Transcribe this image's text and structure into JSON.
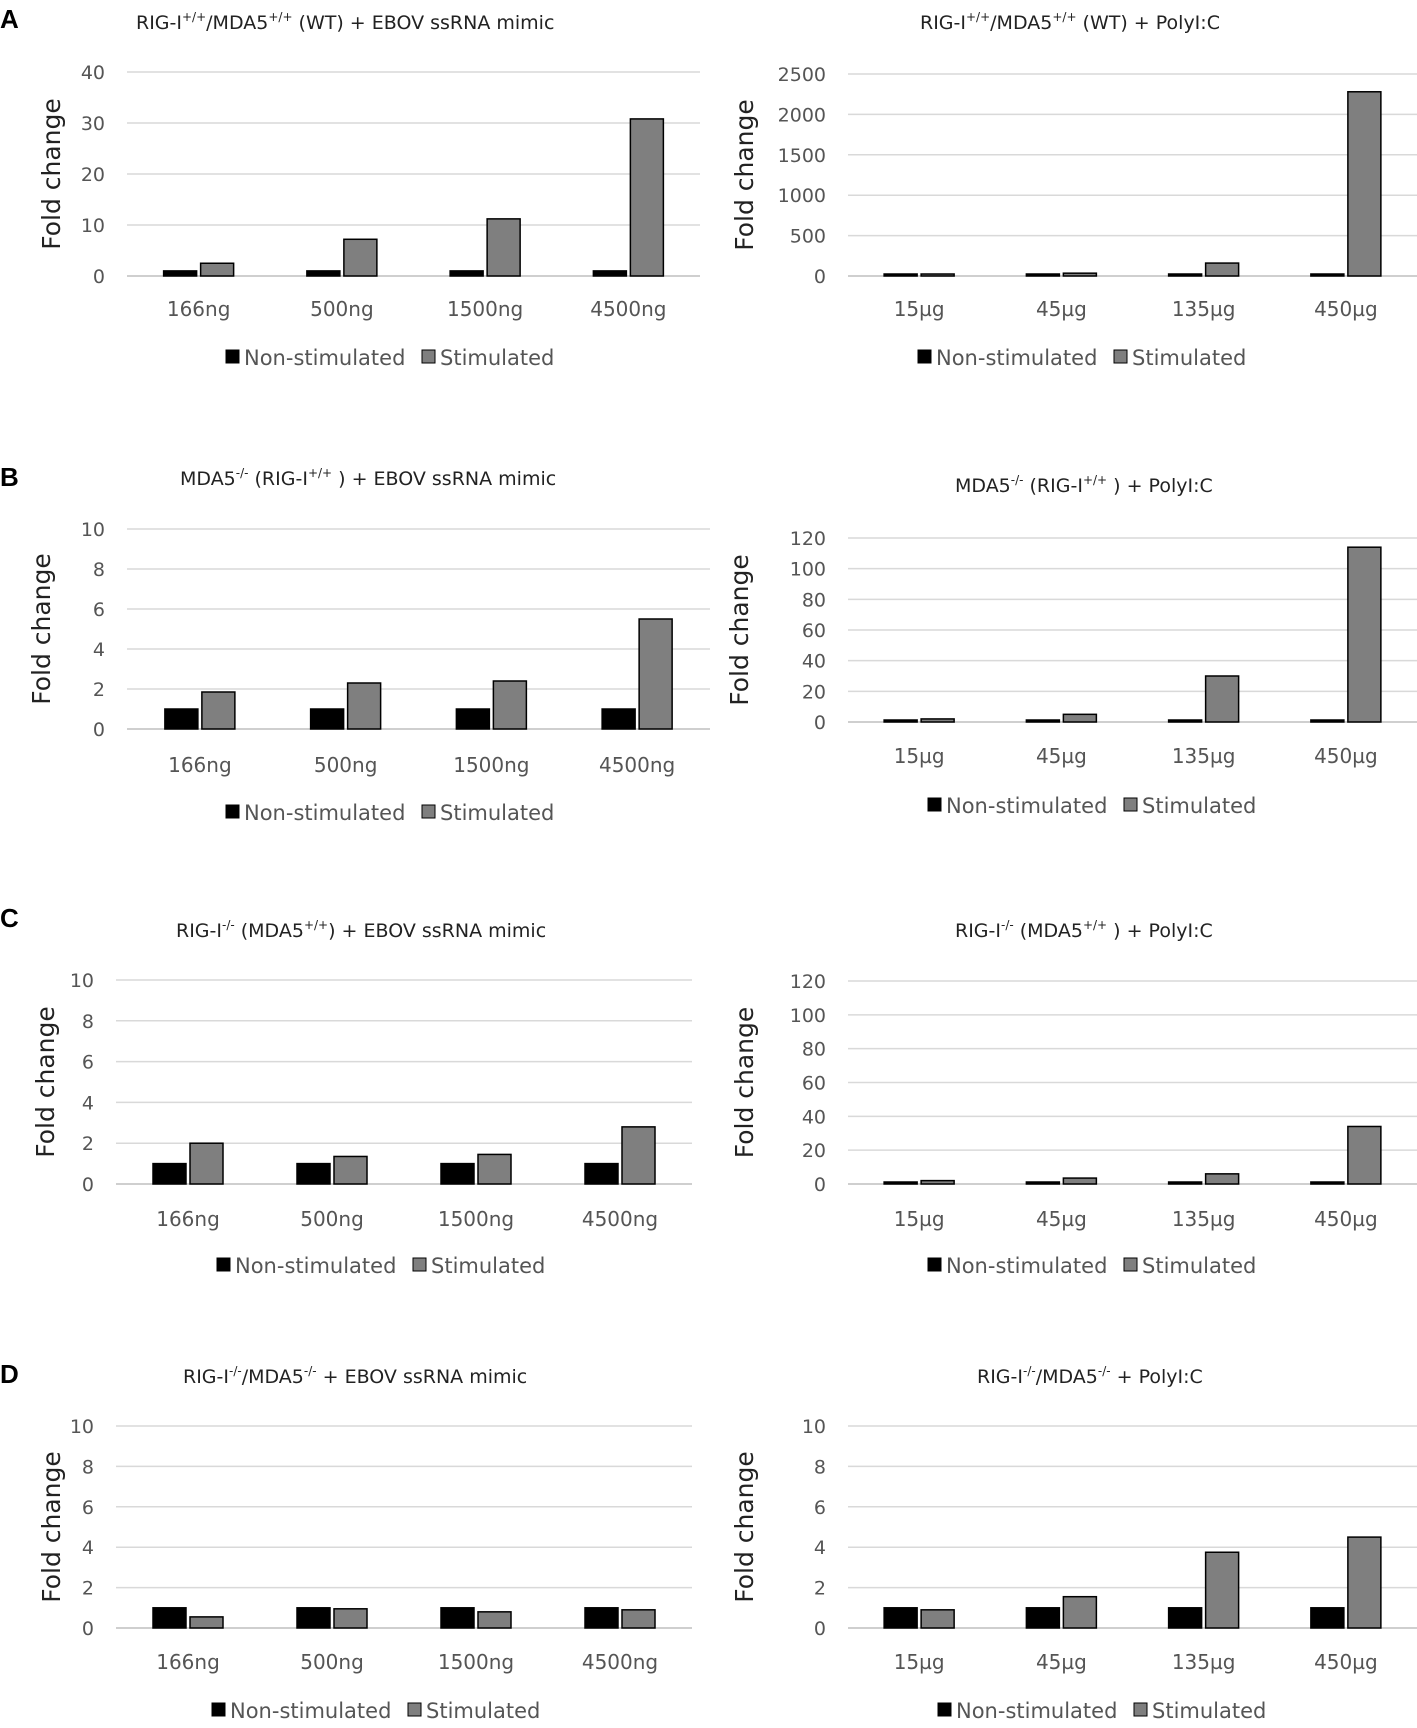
{
  "figure": {
    "panel_letters": [
      "A",
      "B",
      "C",
      "D"
    ],
    "colors": {
      "non_stimulated": "#000000",
      "stimulated": "#7f7f7f",
      "grid": "#d9d9d9"
    }
  },
  "chart_data": [
    {
      "id": "A-left",
      "panel": "A",
      "type": "bar",
      "title": "RIG-I+/+/MDA5+/+ (WT) + EBOV ssRNA mimic",
      "title_parts": [
        {
          "t": "RIG-I"
        },
        {
          "t": "+/+",
          "sup": true
        },
        {
          "t": "/MDA5"
        },
        {
          "t": "+/+",
          "sup": true
        },
        {
          "t": " (WT) + EBOV ssRNA mimic"
        }
      ],
      "ylabel": "Fold change",
      "ylim": [
        0,
        40
      ],
      "yticks": [
        0,
        10,
        20,
        30,
        40
      ],
      "categories": [
        "166ng",
        "500ng",
        "1500ng",
        "4500ng"
      ],
      "series": [
        {
          "name": "Non-stimulated",
          "values": [
            1,
            1,
            1,
            1
          ]
        },
        {
          "name": "Stimulated",
          "values": [
            2.5,
            7.2,
            11.2,
            30.8
          ]
        }
      ],
      "legend": [
        "Non-stimulated",
        "Stimulated"
      ]
    },
    {
      "id": "A-right",
      "panel": "A",
      "type": "bar",
      "title": "RIG-I+/+/MDA5+/+ (WT) + PolyI:C",
      "title_parts": [
        {
          "t": "RIG-I"
        },
        {
          "t": "+/+",
          "sup": true
        },
        {
          "t": "/MDA5"
        },
        {
          "t": "+/+",
          "sup": true
        },
        {
          "t": " (WT) + PolyI:C"
        }
      ],
      "ylabel": "Fold change",
      "ylim": [
        0,
        2500
      ],
      "yticks": [
        0,
        500,
        1000,
        1500,
        2000,
        2500
      ],
      "categories": [
        "15µg",
        "45µg",
        "135µg",
        "450µg"
      ],
      "series": [
        {
          "name": "Non-stimulated",
          "values": [
            1,
            1,
            1,
            1
          ]
        },
        {
          "name": "Stimulated",
          "values": [
            8,
            35,
            160,
            2280
          ]
        }
      ],
      "legend": [
        "Non-stimulated",
        "Stimulated"
      ]
    },
    {
      "id": "B-left",
      "panel": "B",
      "type": "bar",
      "title": "MDA5-/- (RIG-I+/+) + EBOV ssRNA mimic",
      "title_parts": [
        {
          "t": "MDA5"
        },
        {
          "t": "-/-",
          "sup": true
        },
        {
          "t": " (RIG-I"
        },
        {
          "t": "+/+",
          "sup": true
        },
        {
          "t": " ) + EBOV ssRNA mimic"
        }
      ],
      "ylabel": "Fold change",
      "ylim": [
        0,
        10
      ],
      "yticks": [
        0,
        2,
        4,
        6,
        8,
        10
      ],
      "categories": [
        "166ng",
        "500ng",
        "1500ng",
        "4500ng"
      ],
      "series": [
        {
          "name": "Non-stimulated",
          "values": [
            1,
            1,
            1,
            1
          ]
        },
        {
          "name": "Stimulated",
          "values": [
            1.85,
            2.3,
            2.4,
            5.5
          ]
        }
      ],
      "legend": [
        "Non-stimulated",
        "Stimulated"
      ]
    },
    {
      "id": "B-right",
      "panel": "B",
      "type": "bar",
      "title": "MDA5-/- (RIG-I+/+) + PolyI:C",
      "title_parts": [
        {
          "t": "MDA5"
        },
        {
          "t": "-/-",
          "sup": true
        },
        {
          "t": " (RIG-I"
        },
        {
          "t": "+/+",
          "sup": true
        },
        {
          "t": " ) + PolyI:C"
        }
      ],
      "ylabel": "Fold change",
      "ylim": [
        0,
        120
      ],
      "yticks": [
        0,
        20,
        40,
        60,
        80,
        100,
        120
      ],
      "categories": [
        "15µg",
        "45µg",
        "135µg",
        "450µg"
      ],
      "series": [
        {
          "name": "Non-stimulated",
          "values": [
            1,
            1,
            1,
            1
          ]
        },
        {
          "name": "Stimulated",
          "values": [
            2,
            5,
            30,
            114
          ]
        }
      ],
      "legend": [
        "Non-stimulated",
        "Stimulated"
      ]
    },
    {
      "id": "C-left",
      "panel": "C",
      "type": "bar",
      "title": "RIG-I-/- (MDA5+/+) + EBOV ssRNA mimic",
      "title_parts": [
        {
          "t": "RIG-I"
        },
        {
          "t": "-/-",
          "sup": true
        },
        {
          "t": " (MDA5"
        },
        {
          "t": "+/+",
          "sup": true
        },
        {
          "t": ") + EBOV ssRNA mimic"
        }
      ],
      "ylabel": "Fold change",
      "ylim": [
        0,
        10
      ],
      "yticks": [
        0,
        2,
        4,
        6,
        8,
        10
      ],
      "categories": [
        "166ng",
        "500ng",
        "1500ng",
        "4500ng"
      ],
      "series": [
        {
          "name": "Non-stimulated",
          "values": [
            1,
            1,
            1,
            1
          ]
        },
        {
          "name": "Stimulated",
          "values": [
            2.0,
            1.35,
            1.45,
            2.8
          ]
        }
      ],
      "legend": [
        "Non-stimulated",
        "Stimulated"
      ]
    },
    {
      "id": "C-right",
      "panel": "C",
      "type": "bar",
      "title": "RIG-I-/- (MDA5+/+) + PolyI:C",
      "title_parts": [
        {
          "t": "RIG-I"
        },
        {
          "t": "-/-",
          "sup": true
        },
        {
          "t": " (MDA5"
        },
        {
          "t": "+/+",
          "sup": true
        },
        {
          "t": " ) + PolyI:C"
        }
      ],
      "ylabel": "Fold change",
      "ylim": [
        0,
        120
      ],
      "yticks": [
        0,
        20,
        40,
        60,
        80,
        100,
        120
      ],
      "categories": [
        "15µg",
        "45µg",
        "135µg",
        "450µg"
      ],
      "series": [
        {
          "name": "Non-stimulated",
          "values": [
            1,
            1,
            1,
            1
          ]
        },
        {
          "name": "Stimulated",
          "values": [
            2,
            3.5,
            6,
            34
          ]
        }
      ],
      "legend": [
        "Non-stimulated",
        "Stimulated"
      ]
    },
    {
      "id": "D-left",
      "panel": "D",
      "type": "bar",
      "title": "RIG-I-/-/MDA5-/- + EBOV ssRNA mimic",
      "title_parts": [
        {
          "t": "RIG-I"
        },
        {
          "t": "-/-",
          "sup": true
        },
        {
          "t": "/MDA5"
        },
        {
          "t": "-/-",
          "sup": true
        },
        {
          "t": " + EBOV ssRNA mimic"
        }
      ],
      "ylabel": "Fold change",
      "ylim": [
        0,
        10
      ],
      "yticks": [
        0,
        2,
        4,
        6,
        8,
        10
      ],
      "categories": [
        "166ng",
        "500ng",
        "1500ng",
        "4500ng"
      ],
      "series": [
        {
          "name": "Non-stimulated",
          "values": [
            1,
            1,
            1,
            1
          ]
        },
        {
          "name": "Stimulated",
          "values": [
            0.55,
            0.95,
            0.8,
            0.9
          ]
        }
      ],
      "legend": [
        "Non-stimulated",
        "Stimulated"
      ]
    },
    {
      "id": "D-right",
      "panel": "D",
      "type": "bar",
      "title": "RIG-I-/-/MDA5-/- + PolyI:C",
      "title_parts": [
        {
          "t": "RIG-I"
        },
        {
          "t": "-/-",
          "sup": true
        },
        {
          "t": "/MDA5"
        },
        {
          "t": "-/-",
          "sup": true
        },
        {
          "t": " + PolyI:C"
        }
      ],
      "ylabel": "Fold change",
      "ylim": [
        0,
        10
      ],
      "yticks": [
        0,
        2,
        4,
        6,
        8,
        10
      ],
      "categories": [
        "15µg",
        "45µg",
        "135µg",
        "450µg"
      ],
      "series": [
        {
          "name": "Non-stimulated",
          "values": [
            1,
            1,
            1,
            1
          ]
        },
        {
          "name": "Stimulated",
          "values": [
            0.9,
            1.55,
            3.75,
            4.5
          ]
        }
      ],
      "legend": [
        "Non-stimulated",
        "Stimulated"
      ]
    }
  ]
}
